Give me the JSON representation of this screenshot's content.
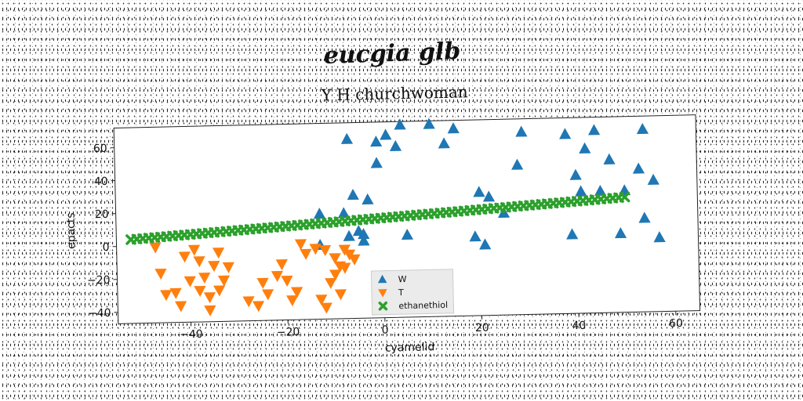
{
  "chart_data": {
    "type": "scatter",
    "suptitle": "eucgia glb",
    "title": "Y H churchwoman",
    "xlabel": "cyamelid",
    "ylabel": "epacts",
    "xlim": [
      -55,
      65
    ],
    "ylim": [
      -47,
      72
    ],
    "xticks": [
      -40,
      -20,
      0,
      20,
      40,
      60
    ],
    "yticks": [
      -40,
      -20,
      0,
      20,
      40,
      60
    ],
    "grid": false,
    "legend_position": "lower-center",
    "series": [
      {
        "name": "W",
        "marker": "triangle-up",
        "color": "#1f77b4",
        "points": [
          [
            -7,
            62
          ],
          [
            -1,
            60
          ],
          [
            1,
            64
          ],
          [
            4,
            70
          ],
          [
            3,
            57
          ],
          [
            -1,
            47
          ],
          [
            10,
            70
          ],
          [
            13,
            58
          ],
          [
            15,
            67
          ],
          [
            -6,
            28
          ],
          [
            -3,
            25
          ],
          [
            -13,
            17
          ],
          [
            -8,
            17
          ],
          [
            -5,
            6
          ],
          [
            -4,
            4
          ],
          [
            -4,
            0
          ],
          [
            -7,
            3
          ],
          [
            -13,
            -2
          ],
          [
            5,
            3
          ],
          [
            20,
            28
          ],
          [
            22,
            25
          ],
          [
            25,
            15
          ],
          [
            19,
            1
          ],
          [
            21,
            -4
          ],
          [
            29,
            64
          ],
          [
            28,
            44
          ],
          [
            38,
            62
          ],
          [
            40,
            37
          ],
          [
            41,
            27
          ],
          [
            42,
            53
          ],
          [
            44,
            64
          ],
          [
            45,
            27
          ],
          [
            47,
            46
          ],
          [
            50,
            27
          ],
          [
            53,
            40
          ],
          [
            54,
            64
          ],
          [
            56,
            33
          ],
          [
            54,
            10
          ],
          [
            57,
            -2
          ],
          [
            39,
            1
          ],
          [
            49,
            1
          ]
        ]
      },
      {
        "name": "T",
        "marker": "triangle-down",
        "color": "#ff7f0e",
        "points": [
          [
            -47,
            -1
          ],
          [
            -46,
            -17
          ],
          [
            -45,
            -30
          ],
          [
            -43,
            -29
          ],
          [
            -42,
            -37
          ],
          [
            -41,
            -7
          ],
          [
            -40,
            -22
          ],
          [
            -39,
            -3
          ],
          [
            -38,
            -10
          ],
          [
            -38,
            -28
          ],
          [
            -37,
            -20
          ],
          [
            -36,
            -32
          ],
          [
            -36,
            -40
          ],
          [
            -35,
            -13
          ],
          [
            -34,
            -5
          ],
          [
            -34,
            -28
          ],
          [
            -33,
            -22
          ],
          [
            -32,
            -14
          ],
          [
            -28,
            -35
          ],
          [
            -26,
            -38
          ],
          [
            -25,
            -24
          ],
          [
            -24,
            -31
          ],
          [
            -22,
            -20
          ],
          [
            -21,
            -13
          ],
          [
            -20,
            -23
          ],
          [
            -19,
            -35
          ],
          [
            -18,
            -30
          ],
          [
            -17,
            -1
          ],
          [
            -16,
            -7
          ],
          [
            -14,
            -4
          ],
          [
            -13,
            -35
          ],
          [
            -12,
            -40
          ],
          [
            -12,
            -5
          ],
          [
            -11,
            -25
          ],
          [
            -10,
            -10
          ],
          [
            -10,
            -20
          ],
          [
            -9,
            -15
          ],
          [
            -9,
            -32
          ],
          [
            -8,
            -5
          ],
          [
            -8,
            -16
          ],
          [
            -7,
            -8
          ],
          [
            -6,
            -11
          ]
        ]
      },
      {
        "name": "ethanethiol",
        "marker": "x",
        "color": "#2ca02c",
        "line": {
          "x_start": -52,
          "x_end": 50,
          "y_start": 4,
          "y_end": 23,
          "count": 84
        }
      }
    ]
  }
}
